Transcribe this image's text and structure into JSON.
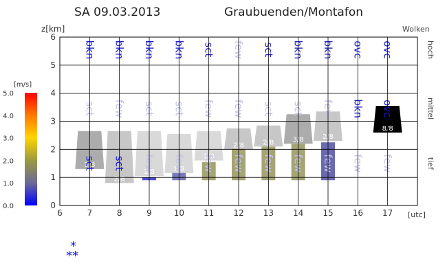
{
  "header": {
    "date": "SA 09.03.2013",
    "region": "Graubuenden/Montafon"
  },
  "colors": {
    "cloud_code_strong": "#1a1ad0",
    "cloud_code_faint": "#c4c4e8",
    "grid": "#000000",
    "snow_icon": "#1b1bd6"
  },
  "colorbar": {
    "unit": "[m/s]",
    "ticks": [
      "5.0",
      "4.0",
      "3.0",
      "2.0",
      "1.0",
      "0.0"
    ],
    "stops": [
      "#ff0000",
      "#ff7a00",
      "#ffd400",
      "#9a9a40",
      "#6a6a9a",
      "#0000ff"
    ]
  },
  "icons": {
    "precip": "snowflake-icon"
  },
  "chart_data": {
    "type": "cloud-layer-meteogram",
    "ylabel": "z[km]",
    "xlabel": "[utc]",
    "right_axis_title": "Wolken",
    "xlim": [
      6,
      18
    ],
    "ylim": [
      0,
      6
    ],
    "x_ticks": [
      "6",
      "7",
      "8",
      "9",
      "10",
      "11",
      "12",
      "13",
      "14",
      "15",
      "16",
      "17"
    ],
    "y_ticks": [
      "0",
      "1",
      "2",
      "3",
      "4",
      "5",
      "6"
    ],
    "layer_labels": [
      {
        "name": "hoch",
        "z": 5.55
      },
      {
        "name": "mittel",
        "z": 3.45
      },
      {
        "name": "tief",
        "z": 1.5
      }
    ],
    "cloud_codes": {
      "hoch": [
        {
          "x": 7,
          "code": "bkn",
          "strong": true
        },
        {
          "x": 8,
          "code": "bkn",
          "strong": true
        },
        {
          "x": 9,
          "code": "bkn",
          "strong": true
        },
        {
          "x": 10,
          "code": "bkn",
          "strong": true
        },
        {
          "x": 11,
          "code": "sct",
          "strong": true
        },
        {
          "x": 12,
          "code": "few",
          "strong": false
        },
        {
          "x": 13,
          "code": "sct",
          "strong": true
        },
        {
          "x": 14,
          "code": "bkn",
          "strong": true
        },
        {
          "x": 15,
          "code": "bkn",
          "strong": true
        },
        {
          "x": 16,
          "code": "ovc",
          "strong": true
        },
        {
          "x": 17,
          "code": "ovc",
          "strong": true
        }
      ],
      "mittel": [
        {
          "x": 7,
          "code": "sct",
          "strong": false
        },
        {
          "x": 8,
          "code": "few",
          "strong": false
        },
        {
          "x": 9,
          "code": "sct",
          "strong": false
        },
        {
          "x": 10,
          "code": "sct",
          "strong": false
        },
        {
          "x": 11,
          "code": "few",
          "strong": false
        },
        {
          "x": 12,
          "code": "few",
          "strong": false
        },
        {
          "x": 13,
          "code": "sct",
          "strong": false
        },
        {
          "x": 14,
          "code": "sct",
          "strong": false
        },
        {
          "x": 15,
          "code": "few",
          "strong": false
        },
        {
          "x": 16,
          "code": "bkn",
          "strong": true
        },
        {
          "x": 17,
          "code": "ovc",
          "strong": true
        }
      ],
      "tief": [
        {
          "x": 7,
          "code": "sct",
          "strong": true
        },
        {
          "x": 8,
          "code": "sct",
          "strong": true
        },
        {
          "x": 9,
          "code": "few",
          "strong": false
        },
        {
          "x": 10,
          "code": "few",
          "strong": false
        },
        {
          "x": 11,
          "code": "few",
          "strong": false
        },
        {
          "x": 12,
          "code": "few",
          "strong": false
        },
        {
          "x": 13,
          "code": "few",
          "strong": false
        },
        {
          "x": 14,
          "code": "few",
          "strong": false
        },
        {
          "x": 15,
          "code": "few",
          "strong": false
        },
        {
          "x": 16,
          "code": "few",
          "strong": false
        },
        {
          "x": 17,
          "code": "few",
          "strong": false
        }
      ]
    },
    "clouds": [
      {
        "x": 7,
        "base": 1.3,
        "top": 2.65,
        "oktas": "3/8",
        "shade": "#a5a5a5"
      },
      {
        "x": 8,
        "base": 0.8,
        "top": 2.65,
        "oktas": "2/8",
        "shade": "#c2c2c2"
      },
      {
        "x": 9,
        "base": 1.05,
        "top": 2.65,
        "oktas": "1/8",
        "shade": "#d6d6d6"
      },
      {
        "x": 10,
        "base": 1.15,
        "top": 2.55,
        "oktas": "1/8",
        "shade": "#d6d6d6"
      },
      {
        "x": 11,
        "base": 1.6,
        "top": 2.65,
        "oktas": "1/8",
        "shade": "#d6d6d6"
      },
      {
        "x": 12,
        "base": 2.0,
        "top": 2.75,
        "oktas": "2/8",
        "shade": "#c2c2c2"
      },
      {
        "x": 13,
        "base": 2.1,
        "top": 2.85,
        "oktas": "2/8",
        "shade": "#c2c2c2"
      },
      {
        "x": 14,
        "base": 2.2,
        "top": 3.25,
        "oktas": "3/8",
        "shade": "#a5a5a5"
      },
      {
        "x": 15,
        "base": 2.3,
        "top": 3.35,
        "oktas": "2/8",
        "shade": "#c2c2c2"
      },
      {
        "x": 17,
        "base": 2.6,
        "top": 3.55,
        "oktas": "8/8",
        "shade": "#000000"
      }
    ],
    "wind_columns": [
      {
        "x": 9,
        "bottom": 0.9,
        "top": 1.0,
        "color": "#3a3acc"
      },
      {
        "x": 10,
        "bottom": 0.9,
        "top": 1.2,
        "color": "#6a6ab0"
      },
      {
        "x": 11,
        "bottom": 0.9,
        "top": 1.55,
        "color": "#9a9a66"
      },
      {
        "x": 12,
        "bottom": 0.9,
        "top": 2.0,
        "color": "#9a9a66"
      },
      {
        "x": 13,
        "bottom": 0.9,
        "top": 2.1,
        "color": "#9a9a66"
      },
      {
        "x": 14,
        "bottom": 0.9,
        "top": 2.2,
        "color": "#9a9a66"
      },
      {
        "x": 15,
        "bottom": 0.9,
        "top": 2.25,
        "color": "#5a5aa8"
      }
    ],
    "precipitation": [
      {
        "x": 7,
        "type": "snow"
      }
    ]
  }
}
